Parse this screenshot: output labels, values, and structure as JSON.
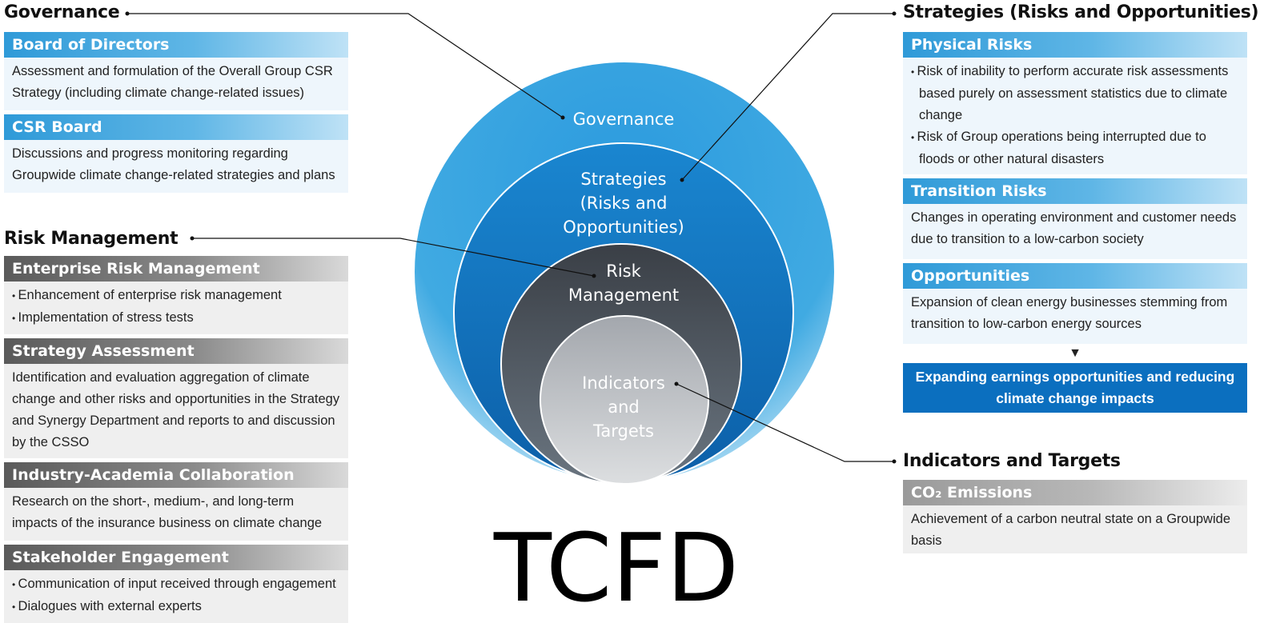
{
  "governance": {
    "title": "Governance",
    "sections": [
      {
        "header": "Board of Directors",
        "text": "Assessment and formulation of the Overall Group CSR Strategy (including climate change-related issues)"
      },
      {
        "header": "CSR Board",
        "text": "Discussions and progress monitoring regarding Groupwide climate change-related strategies and plans"
      }
    ]
  },
  "risk": {
    "title": "Risk Management",
    "sections": [
      {
        "header": "Enterprise Risk Management",
        "bullets": [
          "Enhancement of enterprise risk management",
          "Implementation of stress tests"
        ]
      },
      {
        "header": "Strategy Assessment",
        "text": "Identification and evaluation aggregation of climate change and other risks and opportunities in the Strategy and Synergy Department and reports to and discussion by the CSSO"
      },
      {
        "header": "Industry-Academia Collaboration",
        "text": "Research on the short-, medium-, and long-term impacts of the insurance business on climate change"
      },
      {
        "header": "Stakeholder Engagement",
        "bullets": [
          "Communication of input received through engagement",
          "Dialogues with external experts"
        ]
      }
    ]
  },
  "strategies": {
    "title": "Strategies (Risks and Opportunities)",
    "sections": [
      {
        "header": "Physical Risks",
        "bullets": [
          "Risk of inability to perform accurate risk assessments based purely on assessment statistics due to climate change",
          "Risk of Group operations being interrupted due to floods or other natural disasters"
        ]
      },
      {
        "header": "Transition Risks",
        "text": "Changes in operating environment and customer needs due to transition to a low-carbon society"
      },
      {
        "header": "Opportunities",
        "text": "Expansion of clean energy businesses stemming from transition to low-carbon energy sources"
      }
    ],
    "arrow": "▼",
    "result": "Expanding earnings opportunities and reducing climate change impacts"
  },
  "indicators": {
    "title": "Indicators and Targets",
    "sections": [
      {
        "header": "CO₂ Emissions",
        "text": "Achievement of a carbon neutral state on a Groupwide basis"
      }
    ]
  },
  "circles": {
    "governance": "Governance",
    "strategies": [
      "Strategies",
      "(Risks and",
      "Opportunities)"
    ],
    "risk": [
      "Risk",
      "Management"
    ],
    "indicators": [
      "Indicators",
      "and",
      "Targets"
    ]
  },
  "colors": {
    "outer": "#3aa6e0",
    "strategies": "#1478c4",
    "risk": "#4a5560",
    "indicators": "#a9adb2",
    "result": "#0b6fbf"
  },
  "logo": "TCFD"
}
